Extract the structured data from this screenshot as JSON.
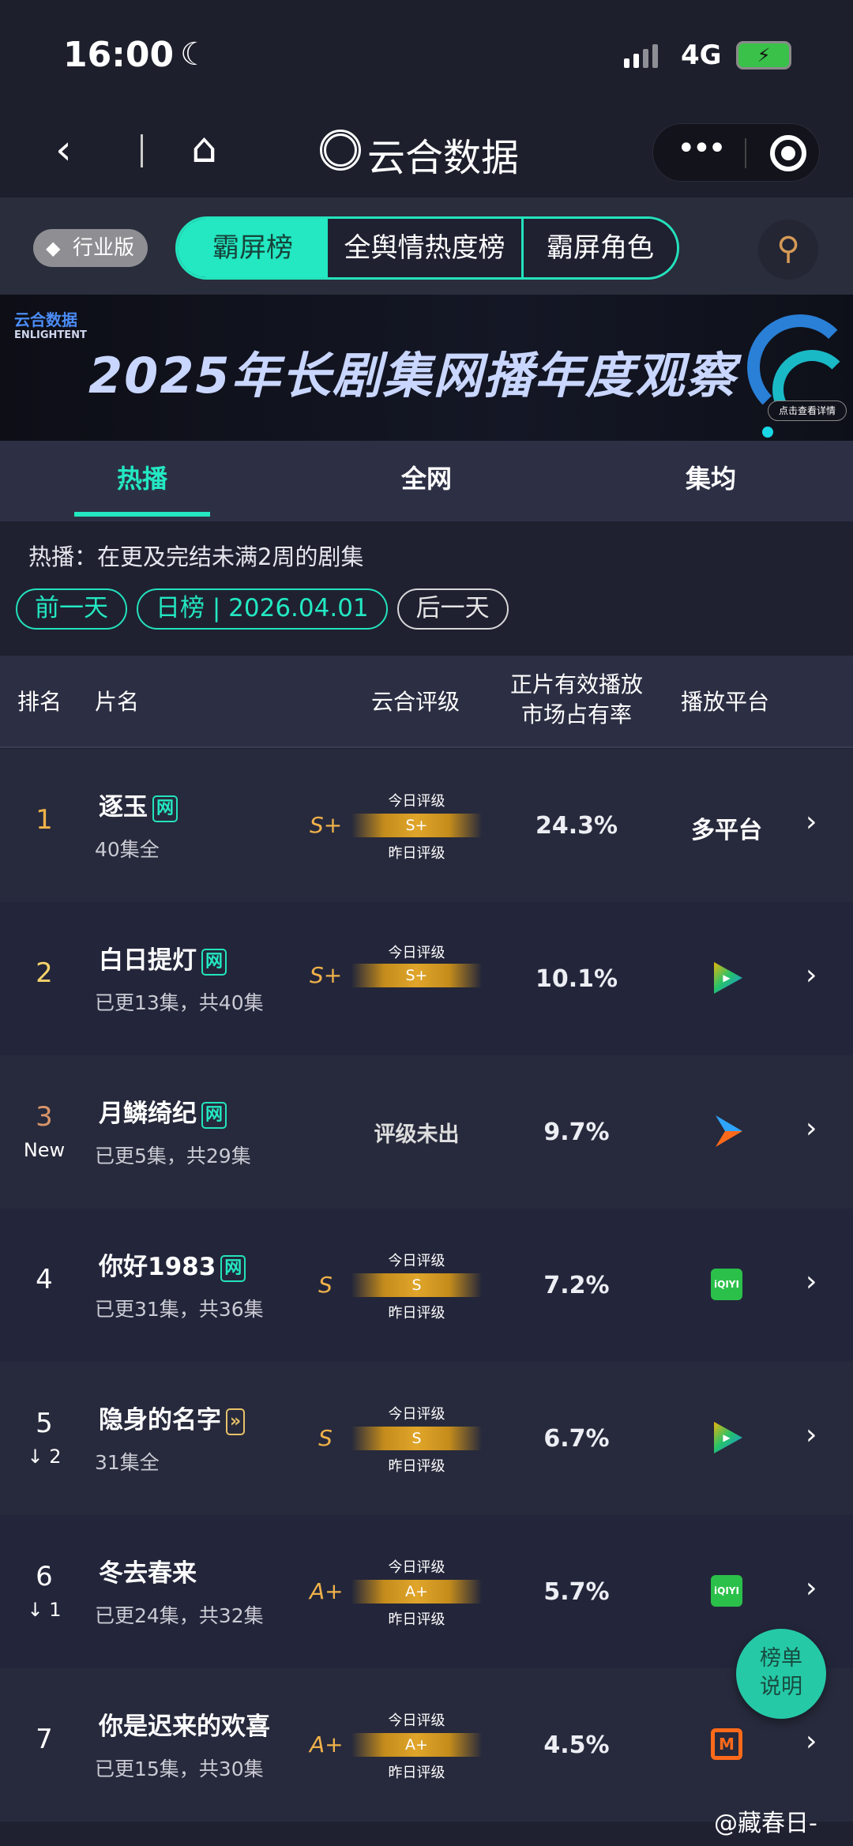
{
  "status_bar": {
    "time": "16:00",
    "network": "4G"
  },
  "nav": {
    "title": "云合数据"
  },
  "filters": {
    "edition": "行业版",
    "segments": [
      "霸屏榜",
      "全舆情热度榜",
      "霸屏角色"
    ],
    "active_segment": "霸屏榜"
  },
  "banner": {
    "logo_cn": "云合数据",
    "logo_en": "ENLIGHTENT",
    "title": "2025年长剧集网播年度观察",
    "button": "点击查看详情"
  },
  "tabs": {
    "items": [
      "热播",
      "全网",
      "集均"
    ],
    "active": "热播"
  },
  "description": "热播：在更及完结未满2周的剧集",
  "date_nav": {
    "prev": "前一天",
    "current": "日榜 | 2026.04.01",
    "next": "后一天"
  },
  "table": {
    "headers": {
      "rank": "排名",
      "title": "片名",
      "rating": "云合评级",
      "share_line1": "正片有效播放",
      "share_line2": "市场占有率",
      "platform": "播放平台"
    },
    "today_label": "今日评级",
    "yesterday_label": "昨日评级",
    "rows": [
      {
        "rank": "1",
        "title": "逐玉",
        "tag": "网",
        "episodes": "40集全",
        "grade_left": "S+",
        "grade_bar": "S+",
        "show_yesterday": true,
        "share": "24.3%",
        "platform": "多平台",
        "platform_icon": "text"
      },
      {
        "rank": "2",
        "title": "白日提灯",
        "tag": "网",
        "episodes": "已更13集，共40集",
        "grade_left": "S+",
        "grade_bar": "S+",
        "show_yesterday": false,
        "share": "10.1%",
        "platform": "腾讯视频",
        "platform_icon": "tencent-video-icon"
      },
      {
        "rank": "3",
        "badge": "New",
        "title": "月鳞绮纪",
        "tag": "网",
        "episodes": "已更5集，共29集",
        "rating_text": "评级未出",
        "share": "9.7%",
        "platform": "优酷",
        "platform_icon": "youku-icon"
      },
      {
        "rank": "4",
        "title": "你好1983",
        "tag": "网",
        "episodes": "已更31集，共36集",
        "grade_left": "S",
        "grade_bar": "S",
        "show_yesterday": true,
        "share": "7.2%",
        "platform": "iQIYI",
        "platform_icon": "iqiyi-icon"
      },
      {
        "rank": "5",
        "change": "↓ 2",
        "title": "隐身的名字",
        "tag": "»",
        "tag_style": "gold",
        "episodes": "31集全",
        "grade_left": "S",
        "grade_bar": "S",
        "show_yesterday": true,
        "share": "6.7%",
        "platform": "腾讯视频",
        "platform_icon": "tencent-video-icon"
      },
      {
        "rank": "6",
        "change": "↓ 1",
        "title": "冬去春来",
        "episodes": "已更24集，共32集",
        "grade_left": "A+",
        "grade_bar": "A+",
        "show_yesterday": true,
        "share": "5.7%",
        "platform": "iQIYI",
        "platform_icon": "iqiyi-icon"
      },
      {
        "rank": "7",
        "title": "你是迟来的欢喜",
        "episodes": "已更15集，共30集",
        "grade_left": "A+",
        "grade_bar": "A+",
        "show_yesterday": true,
        "share": "4.5%",
        "platform": "芒果TV",
        "platform_icon": "mango-tv-icon"
      }
    ]
  },
  "fab": {
    "line1": "榜单",
    "line2": "说明"
  },
  "watermark": "@藏春日-",
  "colors": {
    "accent": "#23e8c2",
    "gold": "#f0b24a",
    "background": "#1f2131",
    "rank1": "#f0b24a",
    "rank2": "#f5d36a",
    "rank3": "#d9956a"
  }
}
